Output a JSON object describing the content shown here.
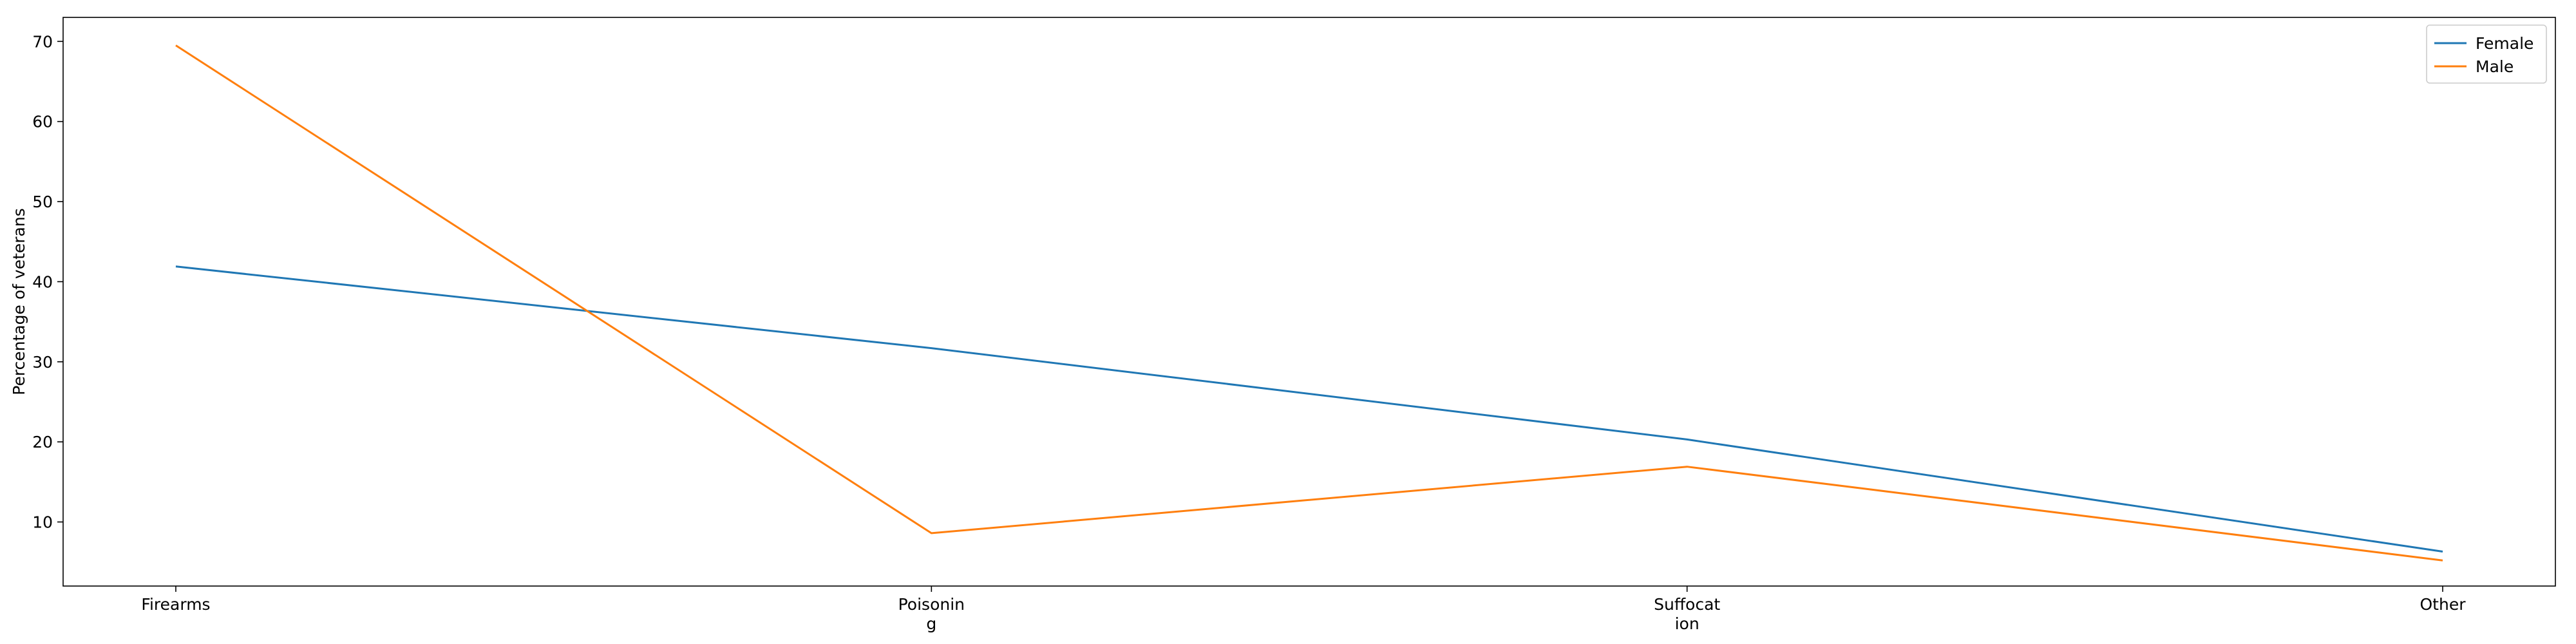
{
  "chart_data": {
    "type": "line",
    "categories": [
      [
        "Firearms"
      ],
      [
        "Poisonin",
        "g"
      ],
      [
        "Suffocat",
        "ion"
      ],
      [
        "Other"
      ]
    ],
    "ylabel": "Percentage of veterans",
    "xlabel": "",
    "title": "",
    "ylim": [
      2,
      73
    ],
    "yticks": [
      "10",
      "20",
      "30",
      "40",
      "50",
      "60",
      "70"
    ],
    "legend_position": "top-right",
    "grid": false,
    "series": [
      {
        "name": "Female",
        "color": "#1f77b4",
        "values": [
          41.9,
          31.7,
          20.3,
          6.3
        ]
      },
      {
        "name": "Male",
        "color": "#ff7f0e",
        "values": [
          69.5,
          8.6,
          16.9,
          5.2
        ]
      }
    ]
  }
}
